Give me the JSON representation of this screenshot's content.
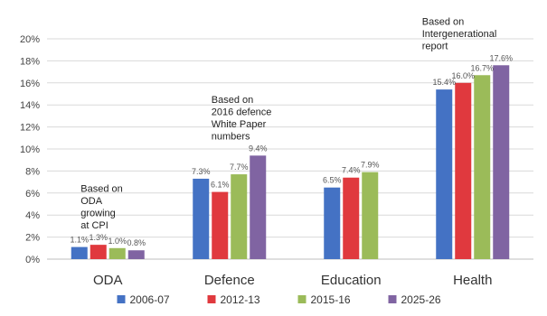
{
  "chart_data": {
    "type": "bar",
    "categories": [
      "ODA",
      "Defence",
      "Education",
      "Health"
    ],
    "series": [
      {
        "name": "2006-07",
        "color": "#4472C4",
        "values": [
          1.1,
          7.3,
          6.5,
          15.4
        ],
        "labels": [
          "1.1%",
          "7.3%",
          "6.5%",
          "15.4%"
        ]
      },
      {
        "name": "2012-13",
        "color": "#E0393E",
        "values": [
          1.3,
          6.1,
          7.4,
          16.0
        ],
        "labels": [
          "1.3%",
          "6.1%",
          "7.4%",
          "16.0%"
        ]
      },
      {
        "name": "2015-16",
        "color": "#9BBB59",
        "values": [
          1.0,
          7.7,
          7.9,
          16.7
        ],
        "labels": [
          "1.0%",
          "7.7%",
          "7.9%",
          "16.7%"
        ]
      },
      {
        "name": "2025-26",
        "color": "#8064A2",
        "values": [
          0.8,
          9.4,
          null,
          17.6
        ],
        "labels": [
          "0.8%",
          "9.4%",
          "",
          "17.6%"
        ]
      }
    ],
    "y_ticks": [
      "0%",
      "2%",
      "4%",
      "6%",
      "8%",
      "10%",
      "12%",
      "14%",
      "16%",
      "18%",
      "20%"
    ],
    "ylim": [
      0,
      20
    ],
    "grid": true,
    "legend_position": "bottom",
    "annotations": [
      {
        "category": "ODA",
        "lines": [
          "Based on",
          "ODA",
          "growing",
          "at CPI"
        ]
      },
      {
        "category": "Defence",
        "lines": [
          "Based on",
          "2016 defence",
          "White Paper",
          "numbers"
        ]
      },
      {
        "category": "Health",
        "lines": [
          "Based on",
          "Intergenerational",
          "report"
        ]
      }
    ]
  }
}
